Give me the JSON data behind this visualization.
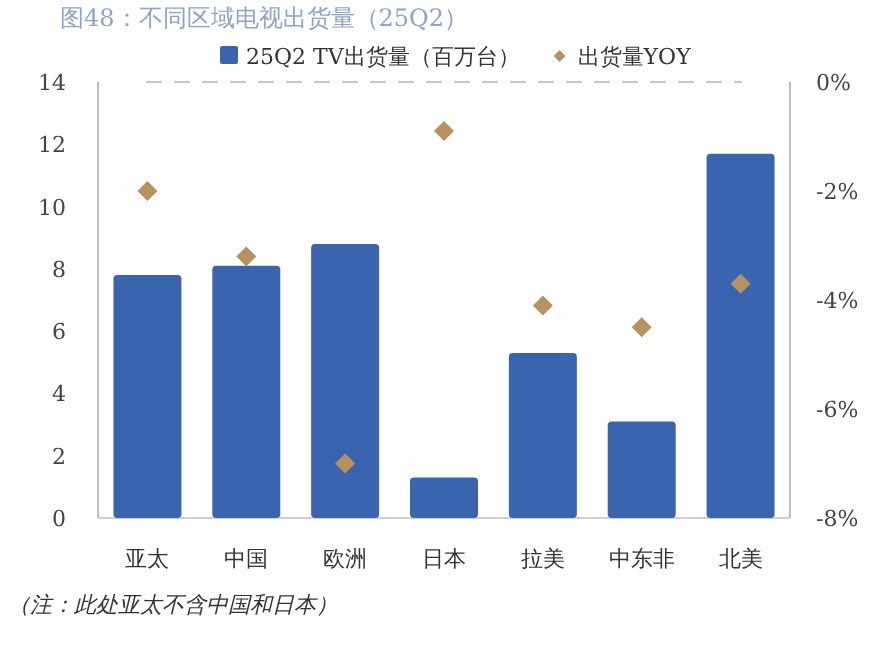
{
  "chart_data": {
    "type": "bar",
    "title": "图48：不同区域电视出货量（25Q2）",
    "categories": [
      "亚太",
      "中国",
      "欧洲",
      "日本",
      "拉美",
      "中东非",
      "北美"
    ],
    "series": [
      {
        "name": "25Q2 TV出货量（百万台）",
        "color": "#3a64ae",
        "values": [
          7.8,
          8.1,
          8.8,
          1.3,
          5.3,
          3.1,
          11.7
        ]
      },
      {
        "name": "出货量YOY",
        "type": "scatter",
        "axis": "y2",
        "color": "#b8915f",
        "marker": "diamond",
        "values": [
          -2.0,
          -3.2,
          -7.0,
          -0.9,
          -4.1,
          -4.5,
          -3.7
        ]
      }
    ],
    "ylim": [
      0,
      14
    ],
    "yticks": [
      0,
      2,
      4,
      6,
      8,
      10,
      12,
      14
    ],
    "y2lim": [
      -8,
      0
    ],
    "y2ticks": [
      {
        "value": -8,
        "label": "-8%"
      },
      {
        "value": -6,
        "label": "-6%"
      },
      {
        "value": -4,
        "label": "-4%"
      },
      {
        "value": -2,
        "label": "-2%"
      },
      {
        "value": 0,
        "label": "0%"
      }
    ],
    "ref_lines": [
      {
        "axis": "y2",
        "value": 0,
        "color": "#c8c8c8",
        "line_style": "dashed"
      }
    ],
    "grid": false,
    "legend": "top",
    "annotations": [
      "（注：此处亚太不含中国和日本）"
    ]
  }
}
